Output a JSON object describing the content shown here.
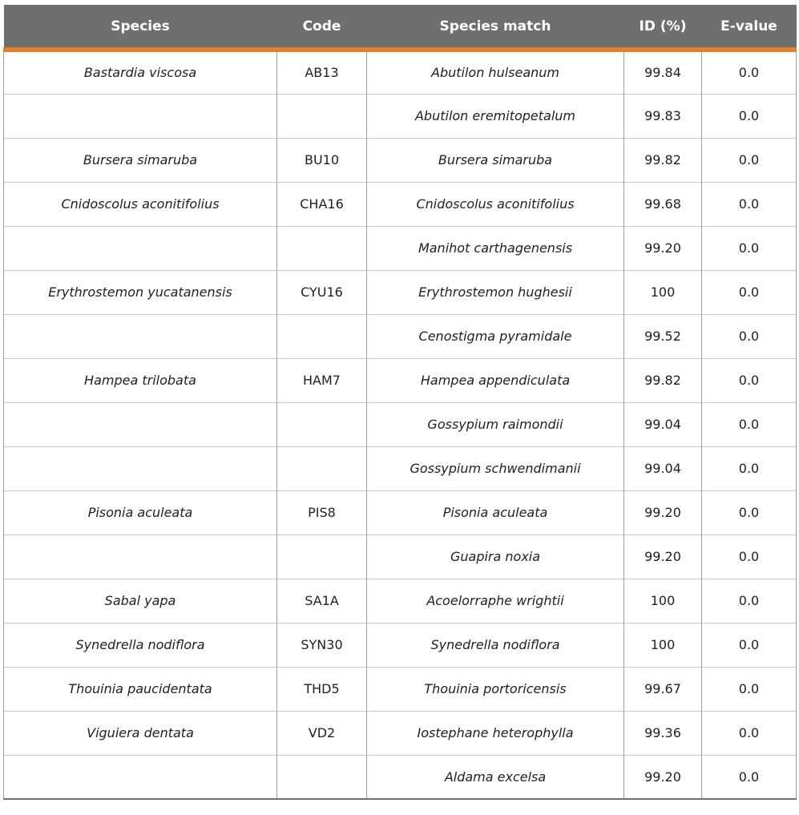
{
  "colors": {
    "header_bg": "#6F6F6F",
    "accent_orange": "#E0812F",
    "row_border": "#C9C9C9",
    "col_border": "#9E9E9E",
    "bottom_border": "#707070",
    "header_text": "#FFFFFF",
    "body_text": "#1F1F1F"
  },
  "table": {
    "columns": [
      "Species",
      "Code",
      "Species match",
      "ID (%)",
      "E-value"
    ],
    "rows": [
      {
        "species": "Bastardia viscosa",
        "code": "AB13",
        "match": "Abutilon hulseanum",
        "id": "99.84",
        "evalue": "0.0"
      },
      {
        "species": "",
        "code": "",
        "match": "Abutilon eremitopetalum",
        "id": "99.83",
        "evalue": "0.0"
      },
      {
        "species": "Bursera simaruba",
        "code": "BU10",
        "match": "Bursera simaruba",
        "id": "99.82",
        "evalue": "0.0"
      },
      {
        "species": "Cnidoscolus aconitifolius",
        "code": "CHA16",
        "match": "Cnidoscolus aconitifolius",
        "id": "99.68",
        "evalue": "0.0"
      },
      {
        "species": "",
        "code": "",
        "match": "Manihot carthagenensis",
        "id": "99.20",
        "evalue": "0.0"
      },
      {
        "species": "Erythrostemon yucatanensis",
        "code": "CYU16",
        "match": "Erythrostemon hughesii",
        "id": "100",
        "evalue": "0.0"
      },
      {
        "species": "",
        "code": "",
        "match": "Cenostigma pyramidale",
        "id": "99.52",
        "evalue": "0.0"
      },
      {
        "species": "Hampea trilobata",
        "code": "HAM7",
        "match": "Hampea appendiculata",
        "id": "99.82",
        "evalue": "0.0"
      },
      {
        "species": "",
        "code": "",
        "match": "Gossypium raimondii",
        "id": "99.04",
        "evalue": "0.0"
      },
      {
        "species": "",
        "code": "",
        "match": "Gossypium schwendimanii",
        "id": "99.04",
        "evalue": "0.0"
      },
      {
        "species": "Pisonia aculeata",
        "code": "PIS8",
        "match": "Pisonia aculeata",
        "id": "99.20",
        "evalue": "0.0"
      },
      {
        "species": "",
        "code": "",
        "match": "Guapira noxia",
        "id": "99.20",
        "evalue": "0.0"
      },
      {
        "species": "Sabal yapa",
        "code": "SA1A",
        "match": "Acoelorraphe wrightii",
        "id": "100",
        "evalue": "0.0"
      },
      {
        "species": "Synedrella nodiflora",
        "code": "SYN30",
        "match": "Synedrella nodiflora",
        "id": "100",
        "evalue": "0.0"
      },
      {
        "species": "Thouinia paucidentata",
        "code": "THD5",
        "match": "Thouinia portoricensis",
        "id": "99.67",
        "evalue": "0.0"
      },
      {
        "species": "Viguiera dentata",
        "code": "VD2",
        "match": "Iostephane heterophylla",
        "id": "99.36",
        "evalue": "0.0"
      },
      {
        "species": "",
        "code": "",
        "match": "Aldama excelsa",
        "id": "99.20",
        "evalue": "0.0"
      }
    ]
  }
}
